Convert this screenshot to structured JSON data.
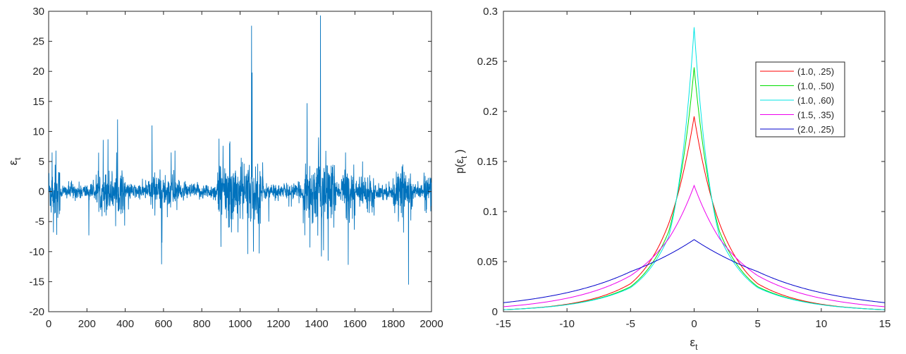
{
  "chart_data": [
    {
      "type": "line",
      "xlabel": "",
      "ylabel": "ε",
      "ylabel_sub": "t",
      "xlim": [
        0,
        2000
      ],
      "ylim": [
        -20,
        30
      ],
      "xticks": [
        "0",
        "200",
        "400",
        "600",
        "800",
        "1000",
        "1200",
        "1400",
        "1600",
        "1800",
        "2000"
      ],
      "yticks": [
        "-20",
        "-15",
        "-10",
        "-5",
        "0",
        "5",
        "10",
        "15",
        "20",
        "25",
        "30"
      ],
      "grid": false,
      "series": [
        {
          "color": "#0072bd",
          "n_points": 2000,
          "approx_points": [
            [
              0,
              0
            ],
            [
              18,
              6.5
            ],
            [
              25,
              -6.8
            ],
            [
              38,
              6.8
            ],
            [
              42,
              -7.2
            ],
            [
              120,
              1.8
            ],
            [
              210,
              -7.3
            ],
            [
              285,
              8.6
            ],
            [
              300,
              -4
            ],
            [
              310,
              8.7
            ],
            [
              355,
              6.5
            ],
            [
              360,
              12
            ],
            [
              380,
              -3
            ],
            [
              540,
              11
            ],
            [
              555,
              -4
            ],
            [
              590,
              -12.1
            ],
            [
              640,
              6.5
            ],
            [
              660,
              6.8
            ],
            [
              890,
              8.8
            ],
            [
              900,
              -9.2
            ],
            [
              940,
              -6
            ],
            [
              1000,
              -4.5
            ],
            [
              1040,
              -10.4
            ],
            [
              1055,
              -5
            ],
            [
              1060,
              27.6
            ],
            [
              1063,
              19.8
            ],
            [
              1070,
              -10
            ],
            [
              1100,
              -10.3
            ],
            [
              1150,
              -5
            ],
            [
              1350,
              14.7
            ],
            [
              1365,
              -9.3
            ],
            [
              1410,
              9
            ],
            [
              1420,
              29.3
            ],
            [
              1425,
              -10.8
            ],
            [
              1460,
              -11.5
            ],
            [
              1490,
              -6
            ],
            [
              1565,
              -12.2
            ],
            [
              1600,
              -4
            ],
            [
              1640,
              5
            ],
            [
              1700,
              -4
            ],
            [
              1850,
              4.5
            ],
            [
              1880,
              -15.5
            ],
            [
              1890,
              3
            ],
            [
              2000,
              0
            ]
          ]
        }
      ]
    },
    {
      "type": "line",
      "xlabel": "ε",
      "xlabel_sub": "t",
      "ylabel": "p(ε",
      "ylabel_sub": "t",
      "ylabel_suffix": " )",
      "xlim": [
        -15,
        15
      ],
      "ylim": [
        0,
        0.3
      ],
      "xticks": [
        "-15",
        "-10",
        "-5",
        "0",
        "5",
        "10",
        "15"
      ],
      "yticks": [
        "0",
        "0.05",
        "0.1",
        "0.15",
        "0.2",
        "0.25",
        "0.3"
      ],
      "grid": false,
      "legend": {
        "placement": "top-right"
      },
      "series": [
        {
          "name": "(1.0, .25)",
          "color": "#ff0000",
          "peak": 0.195,
          "values_at": {
            "-15": 0.002,
            "-5": 0.028,
            "-2": 0.088,
            "0": 0.195,
            "2": 0.088,
            "5": 0.028,
            "15": 0.002
          }
        },
        {
          "name": "(1.0, .50)",
          "color": "#00dd00",
          "peak": 0.244,
          "values_at": {
            "-15": 0.002,
            "-5": 0.025,
            "-2": 0.08,
            "0": 0.244,
            "2": 0.08,
            "5": 0.025,
            "15": 0.002
          }
        },
        {
          "name": "(1.0, .60)",
          "color": "#00e5e5",
          "peak": 0.284,
          "values_at": {
            "-15": 0.002,
            "-5": 0.024,
            "-2": 0.075,
            "0": 0.284,
            "2": 0.075,
            "5": 0.024,
            "15": 0.002
          }
        },
        {
          "name": "(1.5, .35)",
          "color": "#ee00ee",
          "peak": 0.126,
          "values_at": {
            "-15": 0.005,
            "-5": 0.036,
            "-2": 0.073,
            "0": 0.126,
            "2": 0.073,
            "5": 0.036,
            "15": 0.005
          }
        },
        {
          "name": "(2.0, .25)",
          "color": "#0000cc",
          "peak": 0.072,
          "values_at": {
            "-15": 0.009,
            "-5": 0.04,
            "-2": 0.057,
            "0": 0.072,
            "2": 0.057,
            "5": 0.04,
            "15": 0.009
          }
        }
      ]
    }
  ]
}
